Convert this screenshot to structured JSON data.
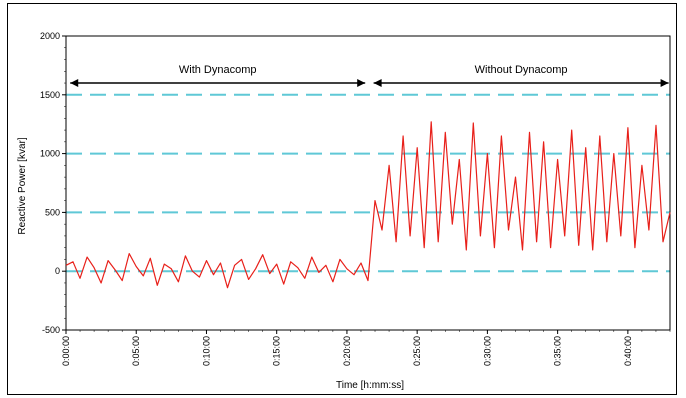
{
  "chart_data": {
    "type": "line",
    "title": "",
    "xlabel": "Time [h:mm:ss]",
    "ylabel": "Reactive Power [kvar]",
    "ylim": [
      -500,
      2000
    ],
    "yticks": [
      -500,
      0,
      500,
      1000,
      1500,
      2000
    ],
    "y_tick_labels": [
      "-500",
      "0",
      "500",
      "1000",
      "1500",
      "2000"
    ],
    "xlim_minutes": [
      0,
      43
    ],
    "x_tick_labels": [
      "0:00:00",
      "0:05:00",
      "0:10:00",
      "0:15:00",
      "0:20:00",
      "0:25:00",
      "0:30:00",
      "0:35:00",
      "0:40:00"
    ],
    "x_tick_minutes": [
      0,
      5,
      10,
      15,
      20,
      25,
      30,
      35,
      40
    ],
    "reference_lines": [
      0,
      500,
      1000,
      1500
    ],
    "reference_line_color": "#5fc8d6",
    "series": [
      {
        "color": "#e8201a",
        "x_minutes": [
          0,
          0.5,
          1,
          1.5,
          2,
          2.5,
          3,
          3.5,
          4,
          4.5,
          5,
          5.5,
          6,
          6.5,
          7,
          7.5,
          8,
          8.5,
          9,
          9.5,
          10,
          10.5,
          11,
          11.5,
          12,
          12.5,
          13,
          13.5,
          14,
          14.5,
          15,
          15.5,
          16,
          16.5,
          17,
          17.5,
          18,
          18.5,
          19,
          19.5,
          20,
          20.5,
          21,
          21.5,
          22,
          22.5,
          23,
          23.5,
          24,
          24.5,
          25,
          25.5,
          26,
          26.5,
          27,
          27.5,
          28,
          28.5,
          29,
          29.5,
          30,
          30.5,
          31,
          31.5,
          32,
          32.5,
          33,
          33.5,
          34,
          34.5,
          35,
          35.5,
          36,
          36.5,
          37,
          37.5,
          38,
          38.5,
          39,
          39.5,
          40,
          40.5,
          41,
          41.5,
          42,
          42.5,
          43
        ],
        "values": [
          50,
          80,
          -60,
          120,
          30,
          -100,
          90,
          10,
          -80,
          150,
          40,
          -40,
          110,
          -120,
          60,
          20,
          -90,
          130,
          0,
          -50,
          90,
          -30,
          70,
          -140,
          50,
          100,
          -70,
          20,
          140,
          -20,
          60,
          -110,
          80,
          30,
          -60,
          120,
          -10,
          50,
          -90,
          100,
          20,
          -30,
          70,
          -80,
          600,
          350,
          900,
          250,
          1150,
          300,
          1050,
          200,
          1270,
          250,
          1180,
          400,
          950,
          180,
          1260,
          300,
          1000,
          200,
          1150,
          350,
          800,
          180,
          1180,
          250,
          1100,
          200,
          950,
          300,
          1200,
          220,
          1050,
          180,
          1150,
          250,
          1000,
          300,
          1220,
          200,
          900,
          350,
          1240,
          250,
          500
        ]
      }
    ],
    "annotations": [
      {
        "text": "With Dynacomp",
        "from_minute": 0.3,
        "to_minute": 21.3
      },
      {
        "text": "Without Dynacomp",
        "from_minute": 21.9,
        "to_minute": 42.9
      }
    ]
  }
}
